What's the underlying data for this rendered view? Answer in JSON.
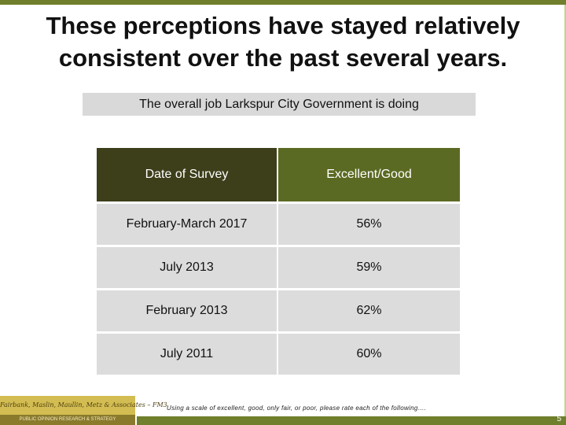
{
  "title": {
    "line1": "These perceptions have stayed relatively",
    "line2": "consistent over the past several years."
  },
  "subtitle": "The overall job Larkspur City Government is doing",
  "chart_data": {
    "type": "table",
    "columns": [
      "Date of Survey",
      "Excellent/Good"
    ],
    "rows": [
      {
        "date": "February-March 2017",
        "value": "56%"
      },
      {
        "date": "July 2013",
        "value": "59%"
      },
      {
        "date": "February 2013",
        "value": "62%"
      },
      {
        "date": "July 2011",
        "value": "60%"
      }
    ]
  },
  "logo": {
    "line1": "Fairbank, Maslin, Maullin, Metz & Associates – FM3",
    "line2": "PUBLIC OPINION RESEARCH & STRATEGY"
  },
  "footnote": "Using a scale of excellent, good, only fair, or poor, please rate each of the following….",
  "page_number": "5",
  "colors": {
    "accent": "#6f7f2c",
    "header_dark": "#3d3f1b",
    "header_olive": "#5b6a22",
    "cell_gray": "#dcdcdc"
  }
}
